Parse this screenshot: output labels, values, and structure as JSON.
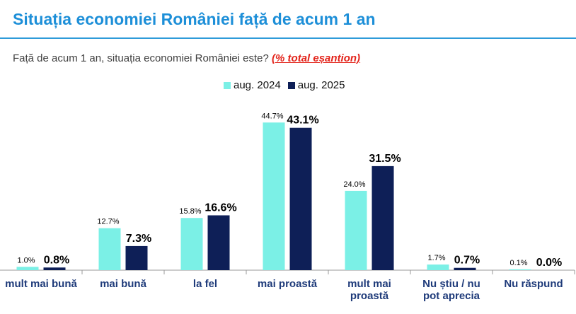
{
  "page": {
    "title": "Situația economiei României față de acum 1 an",
    "subtitle": "Față de acum 1 an, situația economiei României este?",
    "subtitle_note": "(% total eșantion)"
  },
  "colors": {
    "title": "#1d8fd8",
    "series_2024": "#7bf0e6",
    "series_2025": "#0e1f57",
    "note": "#e3241b"
  },
  "chart_data": {
    "type": "bar",
    "categories": [
      "mult mai bună",
      "mai bună",
      "la fel",
      "mai proastă",
      "mult mai proastă",
      "Nu știu / nu pot aprecia",
      "Nu răspund"
    ],
    "category_lines": [
      [
        "mult mai bună"
      ],
      [
        "mai bună"
      ],
      [
        "la fel"
      ],
      [
        "mai proastă"
      ],
      [
        "mult mai",
        "proastă"
      ],
      [
        "Nu știu / nu",
        "pot aprecia"
      ],
      [
        "Nu răspund"
      ]
    ],
    "series": [
      {
        "name": "aug. 2024",
        "values": [
          1.0,
          12.7,
          15.8,
          44.7,
          24.0,
          1.7,
          0.1
        ],
        "labels": [
          "1.0%",
          "12.7%",
          "15.8%",
          "44.7%",
          "24.0%",
          "1.7%",
          "0.1%"
        ]
      },
      {
        "name": "aug. 2025",
        "values": [
          0.8,
          7.3,
          16.6,
          43.1,
          31.5,
          0.7,
          0.0
        ],
        "labels": [
          "0.8%",
          "7.3%",
          "16.6%",
          "43.1%",
          "31.5%",
          "0.7%",
          "0.0%"
        ]
      }
    ],
    "legend_position": "top-center",
    "grid": false,
    "ylim": [
      0,
      50
    ]
  }
}
